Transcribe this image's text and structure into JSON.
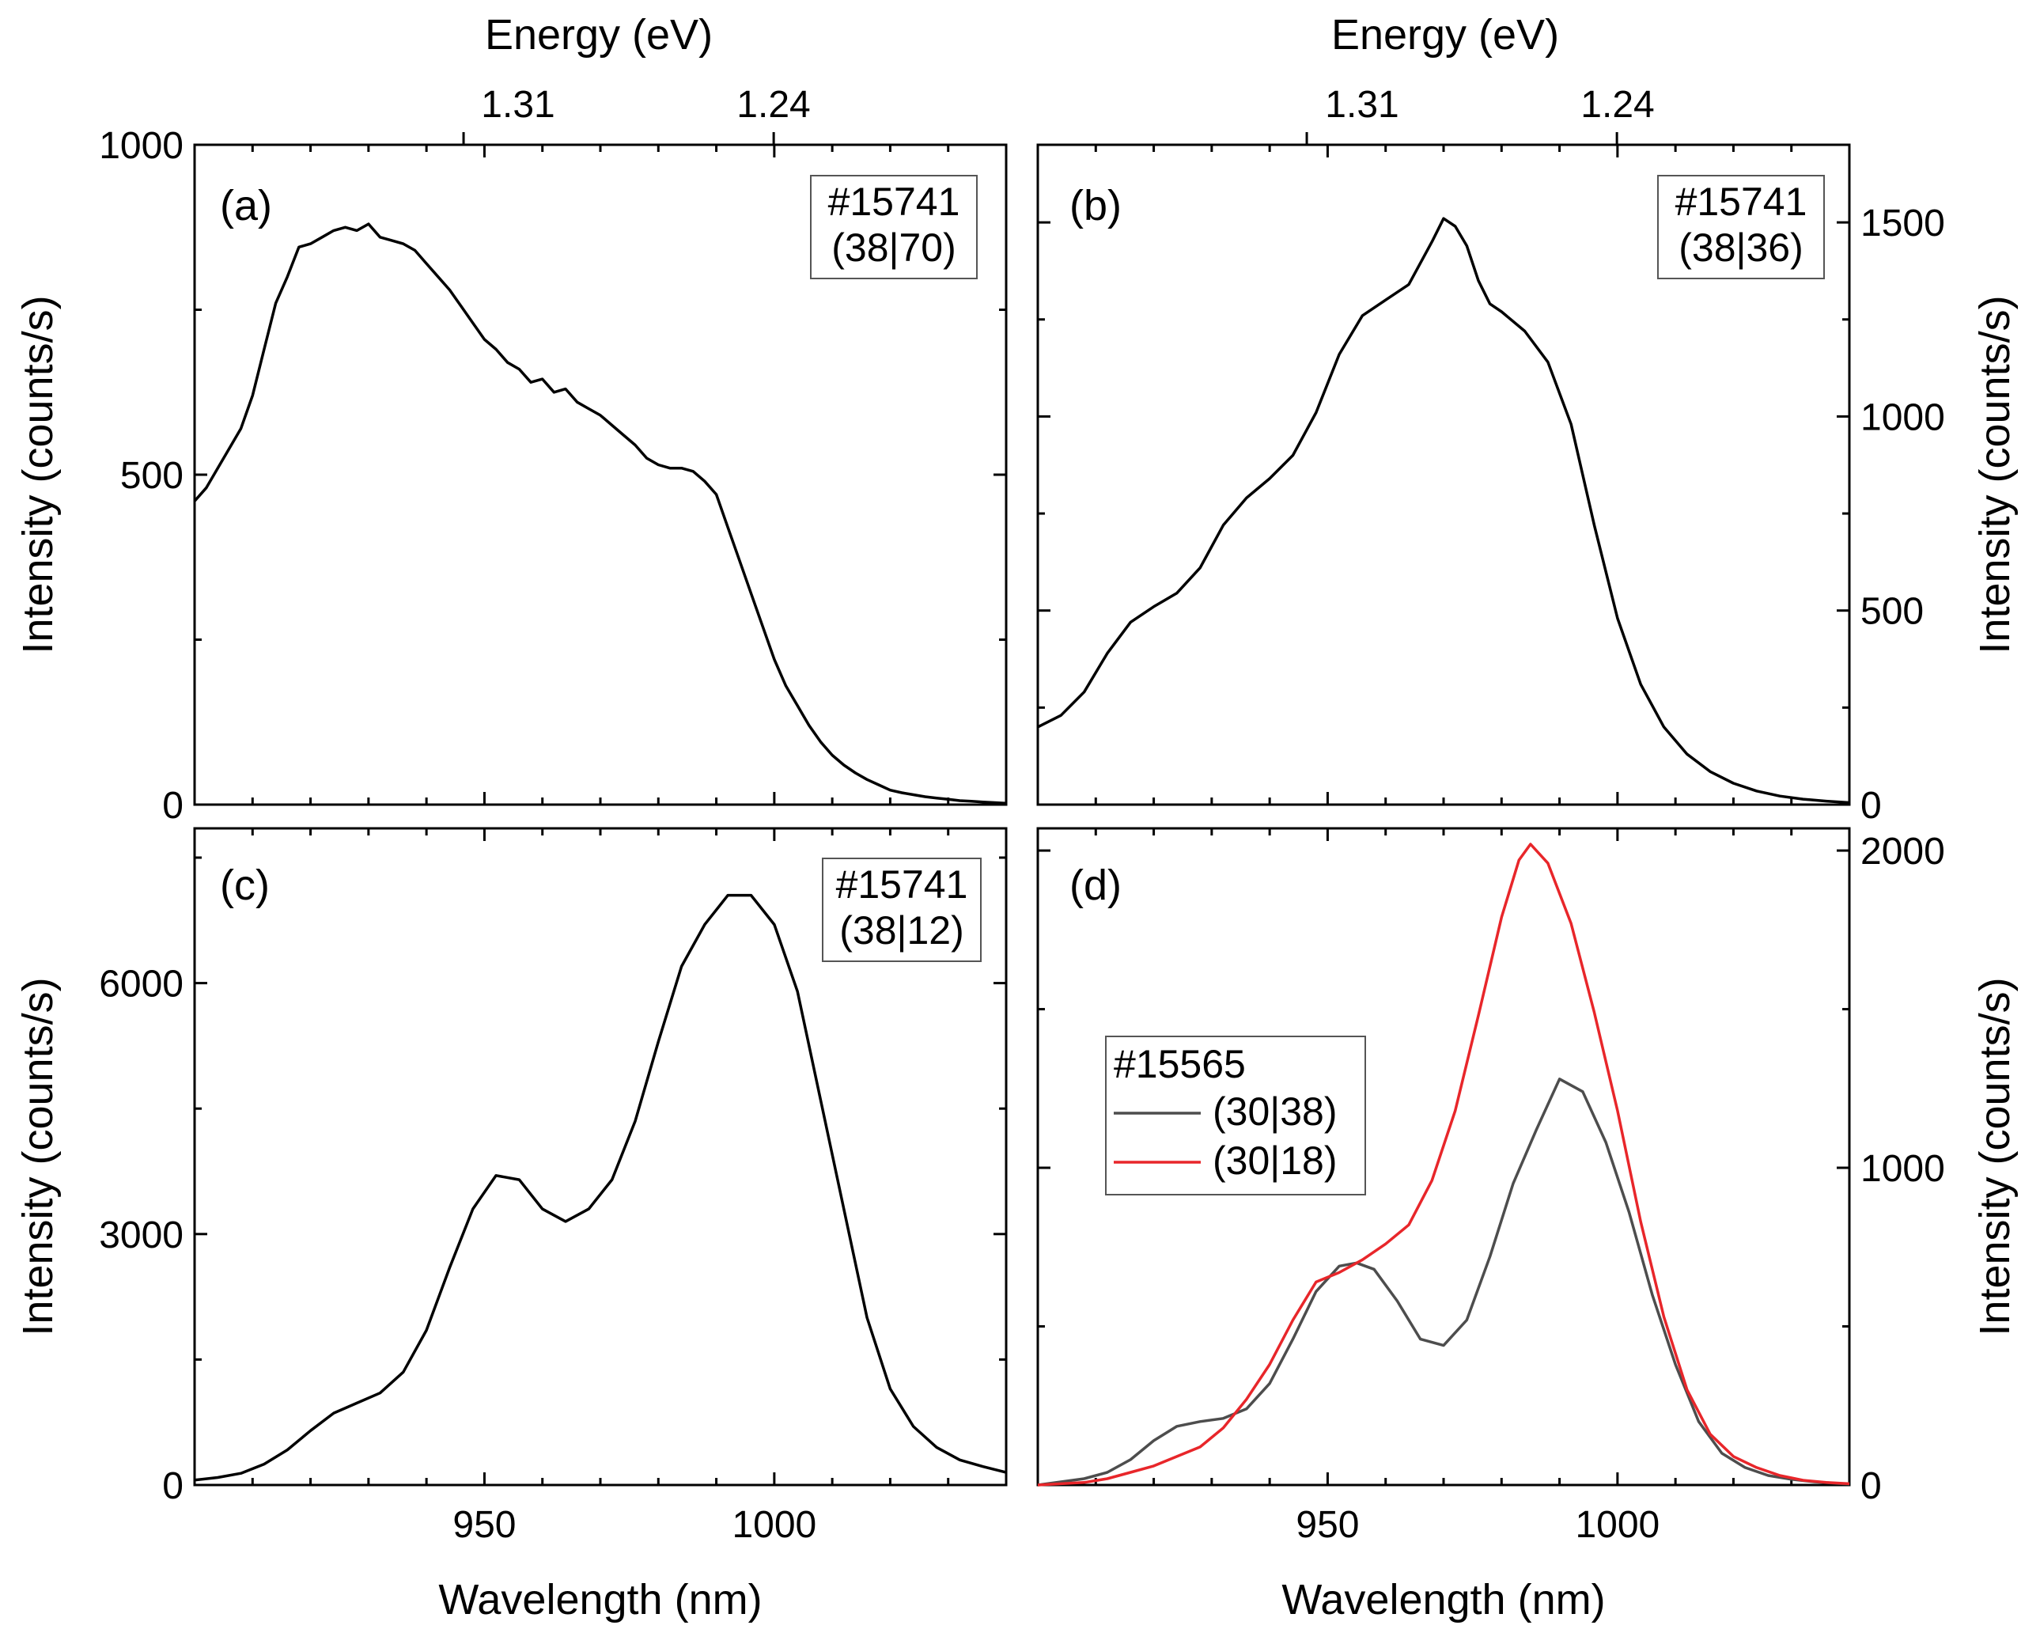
{
  "figure": {
    "top_axis_title": "Energy (eV)",
    "top_tick_labels": [
      "1.31",
      "1.24"
    ]
  },
  "chart_data": [
    {
      "panel": "a",
      "type": "line",
      "panel_label": "(a)",
      "annotation": [
        "#15741",
        "(38|70)"
      ],
      "xlabel": "",
      "ylabel": "Intensity (counts/s)",
      "xlim": [
        900,
        1040
      ],
      "ylim": [
        0,
        1000
      ],
      "yticks": [
        0,
        500,
        1000
      ],
      "xticks": [],
      "series": [
        {
          "color": "#000000",
          "x": [
            900,
            902,
            904,
            906,
            908,
            910,
            912,
            914,
            916,
            918,
            920,
            922,
            924,
            926,
            928,
            930,
            932,
            934,
            936,
            938,
            940,
            942,
            944,
            946,
            948,
            950,
            952,
            954,
            956,
            958,
            960,
            962,
            964,
            966,
            968,
            970,
            972,
            974,
            976,
            978,
            980,
            982,
            984,
            986,
            988,
            990,
            992,
            994,
            996,
            998,
            1000,
            1002,
            1004,
            1006,
            1008,
            1010,
            1012,
            1014,
            1016,
            1018,
            1020,
            1022,
            1024,
            1026,
            1028,
            1030,
            1032,
            1034,
            1036,
            1038,
            1040
          ],
          "y": [
            460,
            480,
            510,
            540,
            570,
            620,
            690,
            760,
            800,
            845,
            850,
            860,
            870,
            875,
            870,
            880,
            860,
            855,
            850,
            840,
            820,
            800,
            780,
            755,
            730,
            705,
            690,
            670,
            660,
            640,
            645,
            625,
            630,
            610,
            600,
            590,
            575,
            560,
            545,
            525,
            515,
            510,
            510,
            505,
            490,
            470,
            420,
            370,
            320,
            270,
            220,
            180,
            150,
            120,
            95,
            75,
            60,
            48,
            38,
            30,
            22,
            18,
            15,
            12,
            10,
            8,
            6,
            5,
            4,
            3,
            2
          ]
        }
      ]
    },
    {
      "panel": "b",
      "type": "line",
      "panel_label": "(b)",
      "annotation": [
        "#15741",
        "(38|36)"
      ],
      "xlabel": "",
      "ylabel": "Intensity (counts/s)",
      "xlim": [
        900,
        1040
      ],
      "ylim": [
        0,
        1700
      ],
      "yticks": [
        0,
        500,
        1000,
        1500
      ],
      "xticks": [],
      "series": [
        {
          "color": "#000000",
          "x": [
            900,
            904,
            908,
            912,
            916,
            920,
            924,
            928,
            932,
            936,
            940,
            944,
            948,
            952,
            956,
            960,
            964,
            968,
            970,
            972,
            974,
            976,
            978,
            980,
            984,
            988,
            992,
            996,
            1000,
            1004,
            1008,
            1012,
            1016,
            1020,
            1024,
            1028,
            1032,
            1036,
            1040
          ],
          "y": [
            200,
            230,
            290,
            390,
            470,
            510,
            545,
            610,
            720,
            790,
            840,
            900,
            1010,
            1160,
            1260,
            1300,
            1340,
            1450,
            1510,
            1490,
            1440,
            1350,
            1290,
            1270,
            1220,
            1140,
            980,
            720,
            480,
            310,
            200,
            130,
            85,
            55,
            35,
            22,
            14,
            9,
            5
          ]
        }
      ]
    },
    {
      "panel": "c",
      "type": "line",
      "panel_label": "(c)",
      "annotation": [
        "#15741",
        "(38|12)"
      ],
      "xlabel": "Wavelength (nm)",
      "ylabel": "Intensity (counts/s)",
      "xlim": [
        900,
        1040
      ],
      "ylim": [
        0,
        7850
      ],
      "yticks": [
        0,
        3000,
        6000
      ],
      "xticks": [
        950,
        1000
      ],
      "series": [
        {
          "color": "#000000",
          "x": [
            900,
            904,
            908,
            912,
            916,
            920,
            924,
            928,
            932,
            936,
            940,
            944,
            948,
            952,
            956,
            960,
            964,
            968,
            972,
            976,
            980,
            984,
            988,
            992,
            996,
            1000,
            1004,
            1008,
            1012,
            1016,
            1020,
            1024,
            1028,
            1032,
            1036,
            1040
          ],
          "y": [
            60,
            90,
            140,
            250,
            420,
            650,
            860,
            980,
            1100,
            1350,
            1850,
            2600,
            3300,
            3700,
            3650,
            3300,
            3150,
            3300,
            3650,
            4350,
            5300,
            6200,
            6700,
            7050,
            7050,
            6700,
            5900,
            4600,
            3300,
            2000,
            1150,
            700,
            450,
            300,
            220,
            150
          ]
        }
      ]
    },
    {
      "panel": "d",
      "type": "line",
      "panel_label": "(d)",
      "xlabel": "Wavelength (nm)",
      "ylabel": "Intensity (counts/s)",
      "xlim": [
        900,
        1040
      ],
      "ylim": [
        0,
        2070
      ],
      "yticks": [
        0,
        1000,
        2000
      ],
      "xticks": [
        950,
        1000
      ],
      "legend": {
        "title": "#15565",
        "placement": "middle-left"
      },
      "series": [
        {
          "name": "(30|38)",
          "color": "#4d4d4d",
          "x": [
            900,
            904,
            908,
            912,
            916,
            920,
            924,
            928,
            932,
            936,
            940,
            944,
            948,
            952,
            955,
            958,
            962,
            966,
            970,
            974,
            978,
            982,
            986,
            990,
            994,
            998,
            1002,
            1006,
            1010,
            1014,
            1018,
            1022,
            1026,
            1030,
            1034,
            1038,
            1040
          ],
          "y": [
            0,
            10,
            20,
            40,
            80,
            140,
            185,
            200,
            210,
            240,
            320,
            460,
            610,
            690,
            700,
            680,
            580,
            460,
            440,
            520,
            720,
            950,
            1120,
            1280,
            1240,
            1080,
            860,
            600,
            380,
            200,
            100,
            55,
            30,
            18,
            10,
            5,
            3
          ]
        },
        {
          "name": "(30|18)",
          "color": "#e8262a",
          "x": [
            900,
            904,
            908,
            912,
            916,
            920,
            924,
            928,
            932,
            936,
            940,
            944,
            948,
            952,
            956,
            960,
            964,
            968,
            972,
            976,
            980,
            983,
            985,
            988,
            992,
            996,
            1000,
            1004,
            1008,
            1012,
            1016,
            1020,
            1024,
            1028,
            1032,
            1036,
            1040
          ],
          "y": [
            0,
            4,
            8,
            20,
            40,
            60,
            90,
            120,
            180,
            270,
            380,
            520,
            640,
            670,
            710,
            760,
            820,
            960,
            1180,
            1480,
            1790,
            1970,
            2020,
            1960,
            1770,
            1490,
            1180,
            830,
            530,
            300,
            160,
            90,
            55,
            30,
            15,
            8,
            4
          ]
        }
      ]
    }
  ]
}
